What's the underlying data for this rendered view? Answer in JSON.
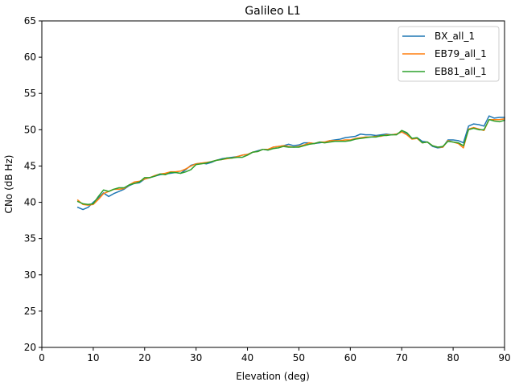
{
  "chart_data": {
    "type": "line",
    "title": "Galileo L1",
    "xlabel": "Elevation (deg)",
    "ylabel": "CNo (dB Hz)",
    "xlim": [
      0,
      90
    ],
    "ylim": [
      20,
      65
    ],
    "xticks": [
      0,
      10,
      20,
      30,
      40,
      50,
      60,
      70,
      80,
      90
    ],
    "yticks": [
      20,
      25,
      30,
      35,
      40,
      45,
      50,
      55,
      60,
      65
    ],
    "grid": false,
    "legend_position": "upper-right",
    "x": [
      7,
      8,
      9,
      10,
      11,
      12,
      13,
      14,
      15,
      16,
      17,
      18,
      19,
      20,
      21,
      22,
      23,
      24,
      25,
      26,
      27,
      28,
      29,
      30,
      31,
      32,
      33,
      34,
      35,
      36,
      37,
      38,
      39,
      40,
      41,
      42,
      43,
      44,
      45,
      46,
      47,
      48,
      49,
      50,
      51,
      52,
      53,
      54,
      55,
      56,
      57,
      58,
      59,
      60,
      61,
      62,
      63,
      64,
      65,
      66,
      67,
      68,
      69,
      70,
      71,
      72,
      73,
      74,
      75,
      76,
      77,
      78,
      79,
      80,
      81,
      82,
      83,
      84,
      85,
      86,
      87,
      88,
      89,
      90
    ],
    "series": [
      {
        "name": "BX_all_1",
        "color": "#1f77b4",
        "values": [
          39.3,
          39.0,
          39.3,
          40.0,
          40.6,
          41.3,
          40.8,
          41.2,
          41.5,
          41.8,
          42.3,
          42.6,
          42.7,
          43.2,
          43.4,
          43.6,
          43.8,
          43.9,
          44.0,
          44.1,
          44.0,
          44.5,
          45.1,
          45.3,
          45.4,
          45.3,
          45.5,
          45.8,
          46.0,
          46.1,
          46.2,
          46.3,
          46.5,
          46.6,
          46.9,
          47.1,
          47.3,
          47.2,
          47.6,
          47.7,
          47.8,
          48.0,
          47.8,
          47.9,
          48.2,
          48.2,
          48.1,
          48.2,
          48.3,
          48.5,
          48.6,
          48.7,
          48.9,
          49.0,
          49.1,
          49.4,
          49.3,
          49.3,
          49.2,
          49.3,
          49.4,
          49.3,
          49.4,
          49.7,
          49.5,
          48.8,
          48.9,
          48.4,
          48.3,
          47.7,
          47.5,
          47.6,
          48.6,
          48.6,
          48.5,
          48.2,
          50.5,
          50.8,
          50.7,
          50.5,
          51.9,
          51.6,
          51.7,
          51.7
        ]
      },
      {
        "name": "EB79_all_1",
        "color": "#ff7f0e",
        "values": [
          40.3,
          39.7,
          39.6,
          39.7,
          40.4,
          41.2,
          41.5,
          41.8,
          41.8,
          41.9,
          42.4,
          42.8,
          42.9,
          43.2,
          43.4,
          43.7,
          43.9,
          44.0,
          44.2,
          44.2,
          44.3,
          44.6,
          45.0,
          45.3,
          45.4,
          45.5,
          45.6,
          45.8,
          45.9,
          46.0,
          46.1,
          46.3,
          46.5,
          46.6,
          46.9,
          47.0,
          47.3,
          47.3,
          47.6,
          47.7,
          47.8,
          47.7,
          47.6,
          47.7,
          47.9,
          48.2,
          48.1,
          48.3,
          48.3,
          48.5,
          48.5,
          48.5,
          48.6,
          48.6,
          48.8,
          48.9,
          49.0,
          49.0,
          49.1,
          49.1,
          49.3,
          49.3,
          49.4,
          49.7,
          49.3,
          48.7,
          48.8,
          48.2,
          48.3,
          47.8,
          47.6,
          47.6,
          48.5,
          48.3,
          48.1,
          47.5,
          50.1,
          50.3,
          50.1,
          49.9,
          51.4,
          51.4,
          51.4,
          51.5
        ]
      },
      {
        "name": "EB81_all_1",
        "color": "#2ca02c",
        "values": [
          40.1,
          39.8,
          39.7,
          39.8,
          40.8,
          41.7,
          41.5,
          41.8,
          42.0,
          42.0,
          42.4,
          42.6,
          42.8,
          43.4,
          43.4,
          43.6,
          43.9,
          43.8,
          44.1,
          44.1,
          44.0,
          44.2,
          44.5,
          45.2,
          45.3,
          45.4,
          45.6,
          45.8,
          45.9,
          46.1,
          46.1,
          46.2,
          46.2,
          46.5,
          46.9,
          47.0,
          47.3,
          47.2,
          47.4,
          47.5,
          47.7,
          47.6,
          47.6,
          47.6,
          47.8,
          48.0,
          48.1,
          48.3,
          48.2,
          48.3,
          48.4,
          48.4,
          48.4,
          48.5,
          48.7,
          48.8,
          48.9,
          49.0,
          49.0,
          49.2,
          49.2,
          49.3,
          49.3,
          49.9,
          49.6,
          48.8,
          48.9,
          48.2,
          48.3,
          47.8,
          47.6,
          47.7,
          48.4,
          48.3,
          48.2,
          47.8,
          50.0,
          50.2,
          50.0,
          50.0,
          51.4,
          51.2,
          51.1,
          51.3
        ]
      }
    ]
  }
}
